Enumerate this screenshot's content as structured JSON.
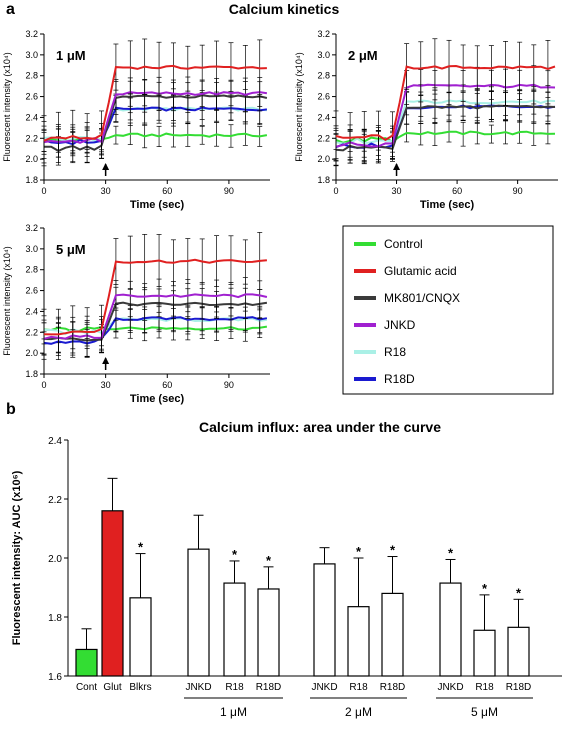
{
  "figure": {
    "panel_a_letter": "a",
    "panel_b_letter": "b",
    "kinetics_title": "Calcium kinetics",
    "legend": [
      {
        "label": "Control",
        "color": "#33dd33"
      },
      {
        "label": "Glutamic acid",
        "color": "#e02020"
      },
      {
        "label": "MK801/CNQX",
        "color": "#3a3a3a"
      },
      {
        "label": "JNKD",
        "color": "#a020d0"
      },
      {
        "label": "R18",
        "color": "#aaf0e6"
      },
      {
        "label": "R18D",
        "color": "#1a1ad0"
      }
    ]
  },
  "chart_data": [
    {
      "type": "line",
      "annotation": "1 μM",
      "xlabel": "Time (sec)",
      "ylabel": "Fluorescent intensity (x10⁴)",
      "xlim": [
        0,
        110
      ],
      "ylim": [
        1.8,
        3.2
      ],
      "xticks": [
        "0",
        "30",
        "60",
        "90"
      ],
      "yticks": [
        "1.8",
        "2.0",
        "2.2",
        "2.4",
        "2.6",
        "2.8",
        "3.0",
        "3.2"
      ],
      "stimulus_time": 30,
      "series": [
        {
          "name": "Control",
          "baseline": 2.18,
          "plateau": 2.23,
          "error": 0.1
        },
        {
          "name": "Glutamic acid",
          "baseline": 2.2,
          "plateau": 2.88,
          "error": 0.24
        },
        {
          "name": "MK801/CNQX",
          "baseline": 2.1,
          "plateau": 2.6,
          "error": 0.14
        },
        {
          "name": "JNKD",
          "baseline": 2.17,
          "plateau": 2.63,
          "error": 0.14
        },
        {
          "name": "R18",
          "baseline": 2.19,
          "plateau": 2.48,
          "error": 0.14
        },
        {
          "name": "R18D",
          "baseline": 2.16,
          "plateau": 2.48,
          "error": 0.12
        }
      ]
    },
    {
      "type": "line",
      "annotation": "2 μM",
      "xlabel": "Time (sec)",
      "ylabel": "Fluorescent intensity (x10⁴)",
      "xlim": [
        0,
        110
      ],
      "ylim": [
        1.8,
        3.2
      ],
      "xticks": [
        "0",
        "30",
        "60",
        "90"
      ],
      "yticks": [
        "1.8",
        "2.0",
        "2.2",
        "2.4",
        "2.6",
        "2.8",
        "3.0",
        "3.2"
      ],
      "stimulus_time": 30,
      "series": [
        {
          "name": "Control",
          "baseline": 2.18,
          "plateau": 2.25,
          "error": 0.1
        },
        {
          "name": "Glutamic acid",
          "baseline": 2.2,
          "plateau": 2.88,
          "error": 0.24
        },
        {
          "name": "MK801/CNQX",
          "baseline": 2.1,
          "plateau": 2.5,
          "error": 0.14
        },
        {
          "name": "JNKD",
          "baseline": 2.14,
          "plateau": 2.7,
          "error": 0.16
        },
        {
          "name": "R18",
          "baseline": 2.17,
          "plateau": 2.55,
          "error": 0.14
        },
        {
          "name": "R18D",
          "baseline": 2.12,
          "plateau": 2.5,
          "error": 0.14
        }
      ]
    },
    {
      "type": "line",
      "annotation": "5 μM",
      "xlabel": "Time (sec)",
      "ylabel": "Fluorescent intensity (x10⁴)",
      "xlim": [
        0,
        110
      ],
      "ylim": [
        1.8,
        3.2
      ],
      "xticks": [
        "0",
        "30",
        "60",
        "90"
      ],
      "yticks": [
        "1.8",
        "2.0",
        "2.2",
        "2.4",
        "2.6",
        "2.8",
        "3.0",
        "3.2"
      ],
      "stimulus_time": 30,
      "series": [
        {
          "name": "Control",
          "baseline": 2.22,
          "plateau": 2.24,
          "error": 0.1
        },
        {
          "name": "Glutamic acid",
          "baseline": 2.2,
          "plateau": 2.88,
          "error": 0.24
        },
        {
          "name": "MK801/CNQX",
          "baseline": 2.12,
          "plateau": 2.47,
          "error": 0.14
        },
        {
          "name": "JNKD",
          "baseline": 2.15,
          "plateau": 2.55,
          "error": 0.14
        },
        {
          "name": "R18",
          "baseline": 2.2,
          "plateau": 2.32,
          "error": 0.12
        },
        {
          "name": "R18D",
          "baseline": 2.11,
          "plateau": 2.33,
          "error": 0.12
        }
      ]
    },
    {
      "type": "bar",
      "title": "Calcium influx: area under the curve",
      "ylabel": "Fluorescent intensity: AUC (x10⁶)",
      "ylim": [
        1.6,
        2.4
      ],
      "yticks": [
        "1.6",
        "1.8",
        "2.0",
        "2.2",
        "2.4"
      ],
      "bars": [
        {
          "label": "Cont",
          "value": 1.69,
          "error": 0.07,
          "color": "#33dd33",
          "sig": ""
        },
        {
          "label": "Glut",
          "value": 2.16,
          "error": 0.11,
          "color": "#e02020",
          "sig": ""
        },
        {
          "label": "Blkrs",
          "value": 1.865,
          "error": 0.15,
          "color": "#ffffff",
          "sig": "*"
        },
        {
          "label": "JNKD",
          "value": 2.03,
          "error": 0.115,
          "color": "#ffffff",
          "sig": ""
        },
        {
          "label": "R18",
          "value": 1.915,
          "error": 0.075,
          "color": "#ffffff",
          "sig": "*"
        },
        {
          "label": "R18D",
          "value": 1.895,
          "error": 0.075,
          "color": "#ffffff",
          "sig": "*"
        },
        {
          "label": "JNKD",
          "value": 1.98,
          "error": 0.055,
          "color": "#ffffff",
          "sig": ""
        },
        {
          "label": "R18",
          "value": 1.835,
          "error": 0.165,
          "color": "#ffffff",
          "sig": "*"
        },
        {
          "label": "R18D",
          "value": 1.88,
          "error": 0.125,
          "color": "#ffffff",
          "sig": "*"
        },
        {
          "label": "JNKD",
          "value": 1.915,
          "error": 0.08,
          "color": "#ffffff",
          "sig": "*"
        },
        {
          "label": "R18",
          "value": 1.755,
          "error": 0.12,
          "color": "#ffffff",
          "sig": "*"
        },
        {
          "label": "R18D",
          "value": 1.765,
          "error": 0.095,
          "color": "#ffffff",
          "sig": "*"
        }
      ],
      "groups": [
        {
          "label": "1 μM",
          "members": [
            3,
            4,
            5
          ]
        },
        {
          "label": "2 μM",
          "members": [
            6,
            7,
            8
          ]
        },
        {
          "label": "5 μM",
          "members": [
            9,
            10,
            11
          ]
        }
      ]
    }
  ]
}
